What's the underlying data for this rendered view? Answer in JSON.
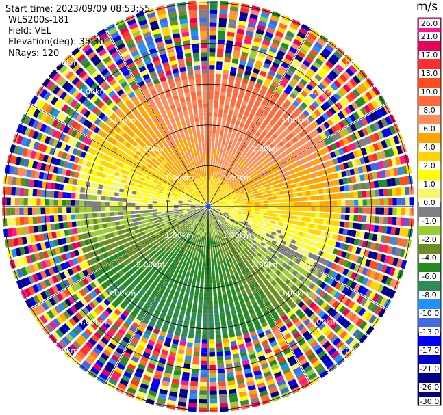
{
  "header": {
    "start_time": "Start time: 2023/09/09 08:53:55",
    "instrument": "WLS200s-181",
    "field": "Field: VEL",
    "elevation": "Elevation(deg): 35.30",
    "nrays": "NRays: 120"
  },
  "colorbar": {
    "unit": "m/s",
    "ticks": [
      "26.0",
      "21.0",
      "17.0",
      "13.0",
      "10.0",
      "8.0",
      "6.0",
      "4.0",
      "2.0",
      "1.0",
      "0.0",
      "-1.0",
      "-2.0",
      "-4.0",
      "-6.0",
      "-8.0",
      "-10.0",
      "-13.0",
      "-17.0",
      "-21.0",
      "-26.0",
      "-30.0"
    ],
    "colors": [
      "#ff1493",
      "#e8005a",
      "#ff2d2d",
      "#ff4d1a",
      "#ff6a3d",
      "#ff8c5a",
      "#ffa500",
      "#ffd400",
      "#ffff00",
      "#f7f76a",
      "#808080",
      "#9acd32",
      "#6b8e23",
      "#228b22",
      "#2e8b57",
      "#1e90ff",
      "#4169e1",
      "#0000ff",
      "#0000cd",
      "#00008b",
      "#000080"
    ]
  },
  "chart_data": {
    "type": "heatmap",
    "projection": "polar PPI",
    "field": "VEL",
    "units": "m/s",
    "range_rings_km": [
      1.0,
      2.0,
      3.0,
      4.0,
      5.0
    ],
    "ring_labels": [
      "1.00km",
      "2.00km",
      "3.00km",
      "4.00km",
      "5.00km"
    ],
    "n_rays": 120,
    "clim": [
      -30,
      26
    ],
    "valid_data_range_km": 3.2,
    "grid": true
  }
}
